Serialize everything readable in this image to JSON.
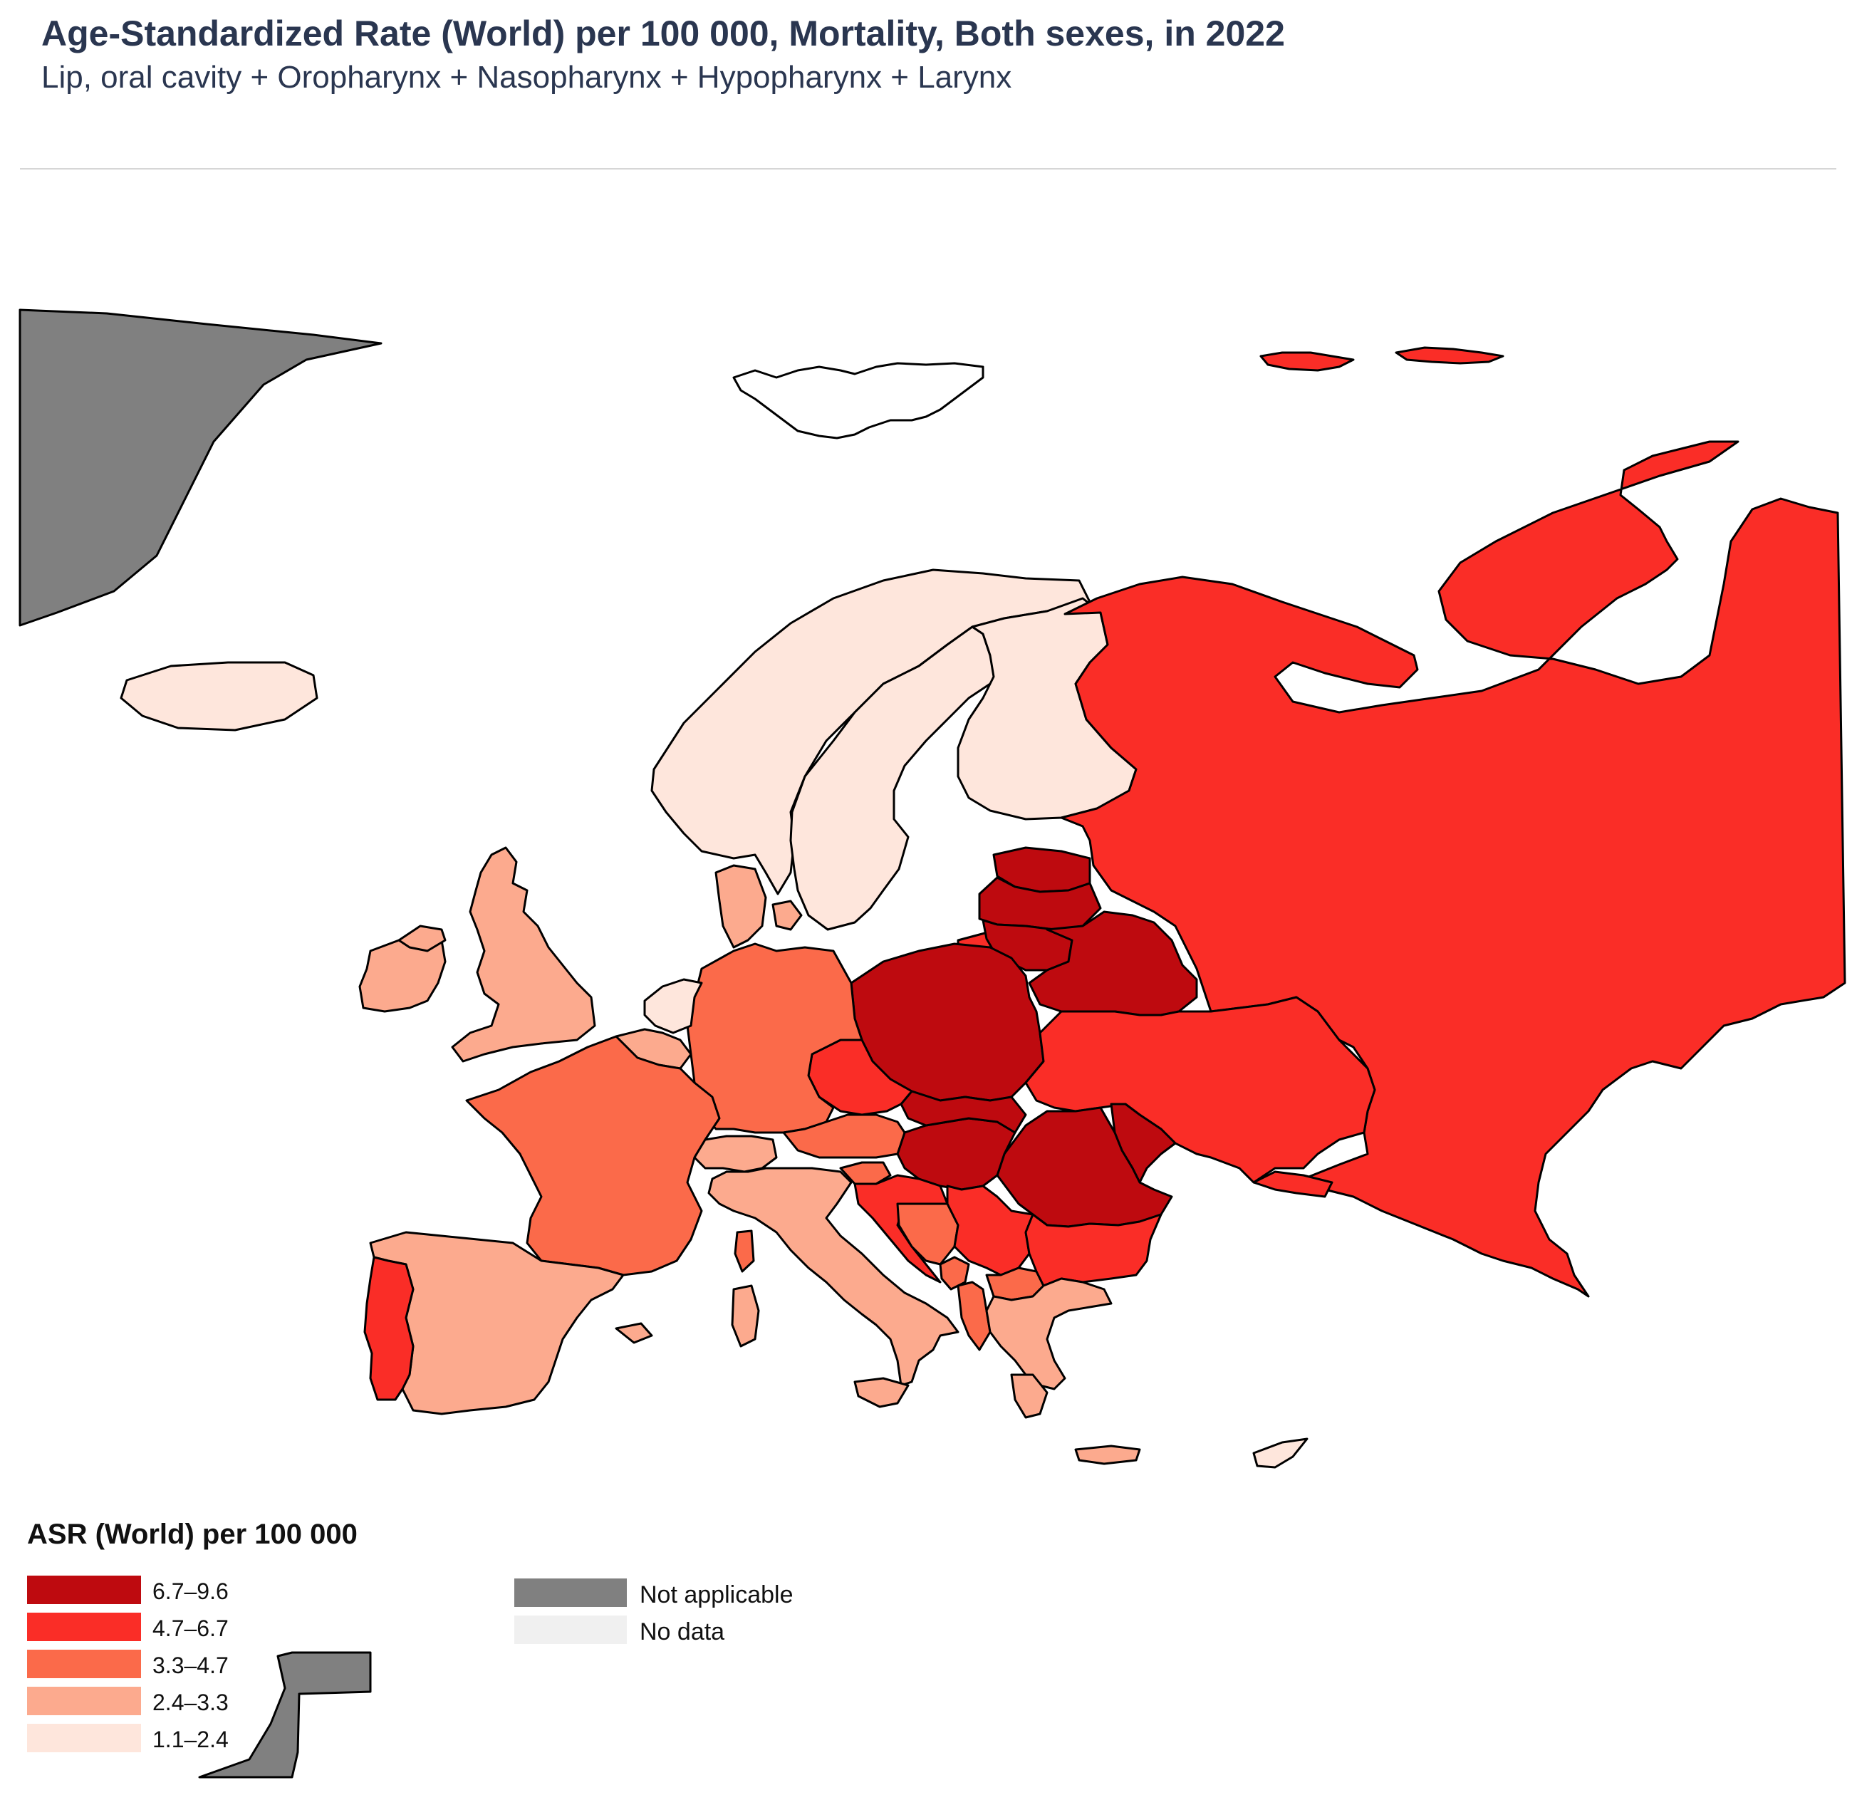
{
  "header": {
    "title": "Age-Standardized Rate (World) per 100 000, Mortality, Both sexes, in 2022",
    "subtitle": "Lip, oral cavity + Oropharynx + Nasopharynx + Hypopharynx + Larynx"
  },
  "legend": {
    "title": "ASR (World) per 100 000",
    "classes": [
      {
        "label": "6.7–9.6",
        "color": "#be0a0f"
      },
      {
        "label": "4.7–6.7",
        "color": "#fa2d27"
      },
      {
        "label": "3.3–4.7",
        "color": "#fb6a4a"
      },
      {
        "label": "2.4–3.3",
        "color": "#fcaa8e"
      },
      {
        "label": "1.1–2.4",
        "color": "#fee6dc"
      }
    ],
    "other": [
      {
        "label": "Not applicable",
        "color": "#808080"
      },
      {
        "label": "No data",
        "color": "#f0f0f0"
      }
    ]
  },
  "map_regions": [
    {
      "name": "Greenland",
      "class": "Not applicable"
    },
    {
      "name": "Iceland",
      "class": "1.1–2.4"
    },
    {
      "name": "Norway",
      "class": "1.1–2.4"
    },
    {
      "name": "Sweden",
      "class": "1.1–2.4"
    },
    {
      "name": "Finland",
      "class": "1.1–2.4"
    },
    {
      "name": "Russia",
      "class": "4.7–6.7"
    },
    {
      "name": "Estonia",
      "class": "6.7–9.6"
    },
    {
      "name": "Latvia",
      "class": "6.7–9.6"
    },
    {
      "name": "Lithuania",
      "class": "6.7–9.6"
    },
    {
      "name": "Belarus",
      "class": "6.7–9.6"
    },
    {
      "name": "Poland",
      "class": "6.7–9.6"
    },
    {
      "name": "Ukraine",
      "class": "4.7–6.7"
    },
    {
      "name": "United Kingdom",
      "class": "2.4–3.3"
    },
    {
      "name": "Ireland",
      "class": "2.4–3.3"
    },
    {
      "name": "Denmark",
      "class": "2.4–3.3"
    },
    {
      "name": "Netherlands",
      "class": "1.1–2.4"
    },
    {
      "name": "Belgium",
      "class": "2.4–3.3"
    },
    {
      "name": "Germany",
      "class": "3.3–4.7"
    },
    {
      "name": "France",
      "class": "3.3–4.7"
    },
    {
      "name": "Spain",
      "class": "2.4–3.3"
    },
    {
      "name": "Portugal",
      "class": "4.7–6.7"
    },
    {
      "name": "Switzerland",
      "class": "2.4–3.3"
    },
    {
      "name": "Italy",
      "class": "2.4–3.3"
    },
    {
      "name": "Austria",
      "class": "3.3–4.7"
    },
    {
      "name": "Czechia",
      "class": "4.7–6.7"
    },
    {
      "name": "Slovakia",
      "class": "6.7–9.6"
    },
    {
      "name": "Hungary",
      "class": "6.7–9.6"
    },
    {
      "name": "Romania",
      "class": "6.7–9.6"
    },
    {
      "name": "Moldova",
      "class": "6.7–9.6"
    },
    {
      "name": "Slovenia",
      "class": "3.3–4.7"
    },
    {
      "name": "Croatia",
      "class": "4.7–6.7"
    },
    {
      "name": "Bosnia and Herzegovina",
      "class": "3.3–4.7"
    },
    {
      "name": "Serbia",
      "class": "4.7–6.7"
    },
    {
      "name": "Montenegro",
      "class": "3.3–4.7"
    },
    {
      "name": "North Macedonia",
      "class": "3.3–4.7"
    },
    {
      "name": "Albania",
      "class": "3.3–4.7"
    },
    {
      "name": "Bulgaria",
      "class": "4.7–6.7"
    },
    {
      "name": "Greece",
      "class": "2.4–3.3"
    },
    {
      "name": "Cyprus",
      "class": "1.1–2.4"
    },
    {
      "name": "Svalbard",
      "class": "No data"
    },
    {
      "name": "Western Sahara",
      "class": "Not applicable"
    }
  ]
}
